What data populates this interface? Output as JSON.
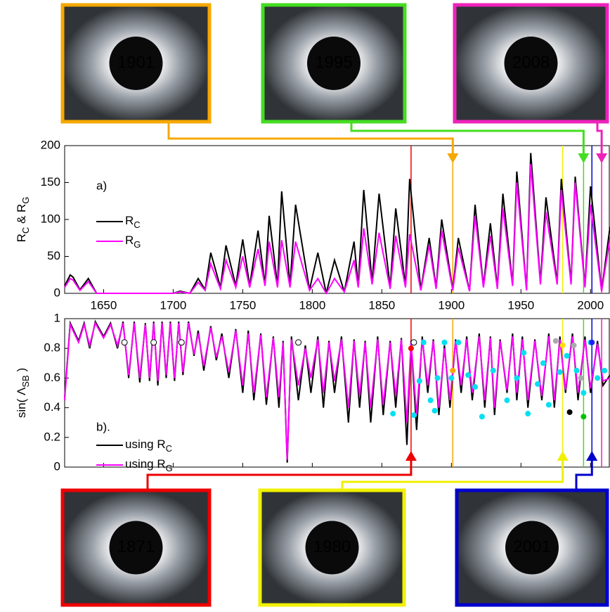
{
  "chart_data": [
    {
      "type": "line",
      "panel_label": "a)",
      "xlim": [
        1622,
        2014
      ],
      "xticks": [
        1650,
        1700,
        1750,
        1800,
        1850,
        1900,
        1950,
        2000
      ],
      "ylim": [
        0,
        200
      ],
      "yticks": [
        0,
        50,
        100,
        150,
        200
      ],
      "y_label": [
        "R",
        "C",
        " & R",
        "G"
      ],
      "x": [
        1622,
        1626,
        1628,
        1633,
        1639,
        1645,
        1660,
        1700,
        1705,
        1712,
        1718,
        1723,
        1727,
        1734,
        1738,
        1745,
        1750,
        1755,
        1761,
        1766,
        1769,
        1775,
        1778,
        1784,
        1788,
        1798,
        1804,
        1810,
        1816,
        1823,
        1830,
        1833,
        1837,
        1843,
        1848,
        1856,
        1860,
        1867,
        1870,
        1878,
        1884,
        1889,
        1893,
        1901,
        1905,
        1913,
        1917,
        1923,
        1928,
        1933,
        1937,
        1944,
        1947,
        1954,
        1957,
        1964,
        1968,
        1976,
        1979,
        1986,
        1989,
        1996,
        2000,
        2008,
        2014
      ],
      "series": [
        {
          "name": [
            "R",
            "C"
          ],
          "color": "#000000",
          "values": [
            10,
            25,
            22,
            5,
            20,
            0,
            0,
            0,
            3,
            0,
            20,
            5,
            55,
            8,
            65,
            10,
            73,
            10,
            85,
            12,
            105,
            10,
            138,
            10,
            120,
            5,
            55,
            0,
            45,
            2,
            70,
            10,
            140,
            15,
            135,
            8,
            115,
            10,
            155,
            5,
            75,
            8,
            100,
            5,
            75,
            3,
            120,
            10,
            95,
            8,
            135,
            12,
            165,
            5,
            190,
            15,
            130,
            15,
            155,
            15,
            158,
            10,
            145,
            3,
            90
          ]
        },
        {
          "name": [
            "R",
            "G"
          ],
          "color": "#ff00ff",
          "values": [
            8,
            20,
            18,
            4,
            16,
            0,
            0,
            0,
            2,
            0,
            15,
            4,
            40,
            6,
            45,
            8,
            50,
            8,
            60,
            10,
            70,
            8,
            72,
            8,
            70,
            4,
            20,
            0,
            20,
            2,
            45,
            8,
            88,
            12,
            82,
            6,
            78,
            8,
            80,
            4,
            65,
            6,
            85,
            4,
            62,
            3,
            105,
            8,
            78,
            6,
            115,
            10,
            150,
            4,
            175,
            12,
            110,
            12,
            140,
            12,
            150,
            8,
            120,
            3,
            75
          ]
        }
      ]
    },
    {
      "type": "line",
      "panel_label": "b).",
      "xlim": [
        1622,
        2014
      ],
      "ylim": [
        0,
        1
      ],
      "yticks": [
        0,
        0.2,
        0.4,
        0.6,
        0.8,
        1
      ],
      "y_label": [
        "sin( Λ",
        "SB",
        " )"
      ],
      "x": [
        1622,
        1626,
        1632,
        1636,
        1640,
        1644,
        1650,
        1655,
        1660,
        1664,
        1668,
        1672,
        1676,
        1680,
        1683,
        1686,
        1689,
        1692,
        1695,
        1698,
        1701,
        1704,
        1707,
        1711,
        1715,
        1718,
        1722,
        1727,
        1731,
        1735,
        1740,
        1745,
        1750,
        1754,
        1758,
        1763,
        1767,
        1772,
        1776,
        1779,
        1782,
        1785,
        1790,
        1795,
        1799,
        1804,
        1808,
        1812,
        1816,
        1821,
        1826,
        1830,
        1834,
        1838,
        1842,
        1847,
        1851,
        1856,
        1860,
        1864,
        1868,
        1871,
        1875,
        1879,
        1883,
        1887,
        1891,
        1895,
        1899,
        1903,
        1907,
        1911,
        1915,
        1920,
        1924,
        1928,
        1931,
        1935,
        1940,
        1944,
        1947,
        1951,
        1955,
        1960,
        1965,
        1970,
        1974,
        1978,
        1982,
        1987,
        1991,
        1996,
        2000,
        2005,
        2009,
        2014
      ],
      "series": [
        {
          "name": [
            "using R",
            "C"
          ],
          "color": "#000000",
          "values": [
            0.47,
            0.97,
            0.85,
            0.97,
            0.8,
            0.98,
            0.88,
            0.97,
            0.8,
            0.98,
            0.6,
            0.98,
            0.57,
            0.97,
            0.58,
            0.98,
            0.55,
            0.98,
            0.6,
            0.98,
            0.58,
            0.98,
            0.62,
            0.98,
            0.75,
            0.92,
            0.65,
            0.95,
            0.72,
            0.9,
            0.6,
            0.93,
            0.5,
            0.92,
            0.45,
            0.9,
            0.42,
            0.88,
            0.4,
            0.85,
            0.03,
            0.88,
            0.45,
            0.82,
            0.5,
            0.88,
            0.4,
            0.85,
            0.5,
            0.88,
            0.3,
            0.86,
            0.4,
            0.85,
            0.3,
            0.88,
            0.35,
            0.85,
            0.4,
            0.87,
            0.15,
            0.85,
            0.25,
            0.88,
            0.5,
            0.86,
            0.35,
            0.82,
            0.4,
            0.86,
            0.5,
            0.88,
            0.45,
            0.9,
            0.4,
            0.88,
            0.35,
            0.86,
            0.5,
            0.9,
            0.45,
            0.88,
            0.4,
            0.86,
            0.45,
            0.9,
            0.4,
            0.88,
            0.5,
            0.9,
            0.45,
            0.88,
            0.5,
            0.85,
            0.55,
            0.62
          ]
        },
        {
          "name": [
            "using R",
            "G"
          ],
          "color": "#ff00ff",
          "values": [
            0.45,
            0.96,
            0.84,
            0.96,
            0.82,
            0.97,
            0.87,
            0.96,
            0.82,
            0.97,
            0.62,
            0.97,
            0.6,
            0.96,
            0.6,
            0.97,
            0.58,
            0.97,
            0.62,
            0.97,
            0.6,
            0.97,
            0.64,
            0.97,
            0.76,
            0.9,
            0.68,
            0.94,
            0.74,
            0.88,
            0.64,
            0.92,
            0.55,
            0.9,
            0.5,
            0.89,
            0.47,
            0.87,
            0.47,
            0.84,
            0.05,
            0.86,
            0.55,
            0.8,
            0.6,
            0.86,
            0.5,
            0.84,
            0.58,
            0.86,
            0.4,
            0.85,
            0.48,
            0.84,
            0.4,
            0.86,
            0.42,
            0.84,
            0.48,
            0.86,
            0.3,
            0.84,
            0.35,
            0.86,
            0.55,
            0.85,
            0.4,
            0.8,
            0.45,
            0.85,
            0.55,
            0.86,
            0.5,
            0.88,
            0.45,
            0.87,
            0.4,
            0.85,
            0.52,
            0.88,
            0.5,
            0.86,
            0.45,
            0.85,
            0.48,
            0.88,
            0.45,
            0.86,
            0.52,
            0.88,
            0.5,
            0.86,
            0.53,
            0.83,
            0.58,
            0.6
          ]
        },
        {
          "marker": "dot",
          "color": "#00e0f0",
          "x": [
            1858,
            1873,
            1877,
            1880,
            1885,
            1888,
            1890,
            1895,
            1900,
            1905,
            1912,
            1917,
            1922,
            1930,
            1940,
            1947,
            1952,
            1955,
            1962,
            1966,
            1970,
            1978,
            1983,
            1990,
            1995,
            2000,
            2005,
            2010
          ],
          "values": [
            0.36,
            0.35,
            0.58,
            0.84,
            0.45,
            0.38,
            0.6,
            0.84,
            0.6,
            0.84,
            0.62,
            0.54,
            0.34,
            0.65,
            0.45,
            0.6,
            0.77,
            0.36,
            0.56,
            0.7,
            0.42,
            0.64,
            0.75,
            0.65,
            0.5,
            0.84,
            0.6,
            0.65
          ]
        },
        {
          "marker": "dot",
          "color": "#aaaaaa",
          "x": [
            1975,
            1988,
            1993
          ],
          "values": [
            0.85,
            0.82,
            0.6
          ]
        },
        {
          "marker": "dot",
          "color": "#ffffff",
          "x": [
            1665,
            1686,
            1706,
            1790,
            1873
          ],
          "values": [
            0.84,
            0.84,
            0.84,
            0.84,
            0.84
          ]
        },
        {
          "marker": "dot",
          "color": "#ff0000",
          "x": [
            1871
          ],
          "values": [
            0.8
          ]
        },
        {
          "marker": "dot",
          "color": "#ffa500",
          "x": [
            1901
          ],
          "values": [
            0.65
          ]
        },
        {
          "marker": "dot",
          "color": "#ffe000",
          "x": [
            1980
          ],
          "values": [
            0.82
          ]
        },
        {
          "marker": "dot",
          "color": "#00c000",
          "x": [
            1995
          ],
          "values": [
            0.34
          ]
        },
        {
          "marker": "dot",
          "color": "#000000",
          "x": [
            1985
          ],
          "values": [
            0.37
          ]
        },
        {
          "marker": "dot",
          "color": "#2020ff",
          "x": [
            2001
          ],
          "values": [
            0.84
          ]
        }
      ]
    }
  ],
  "eclipses": [
    {
      "year": {
        "value": 1901,
        "label": "1901"
      },
      "color": "#f5a800",
      "position": "top"
    },
    {
      "year": {
        "value": 1995,
        "label": "1995"
      },
      "color": "#44dd22",
      "position": "top"
    },
    {
      "year": {
        "value": 2008,
        "label": "2008"
      },
      "color": "#ee22bb",
      "position": "top"
    },
    {
      "year": {
        "value": 1871,
        "label": "1871"
      },
      "color": "#ee0000",
      "position": "bottom"
    },
    {
      "year": {
        "value": 1980,
        "label": "1980"
      },
      "color": "#f0f000",
      "position": "bottom"
    },
    {
      "year": {
        "value": 2001,
        "label": "2001"
      },
      "color": "#0000cc",
      "position": "bottom"
    }
  ]
}
